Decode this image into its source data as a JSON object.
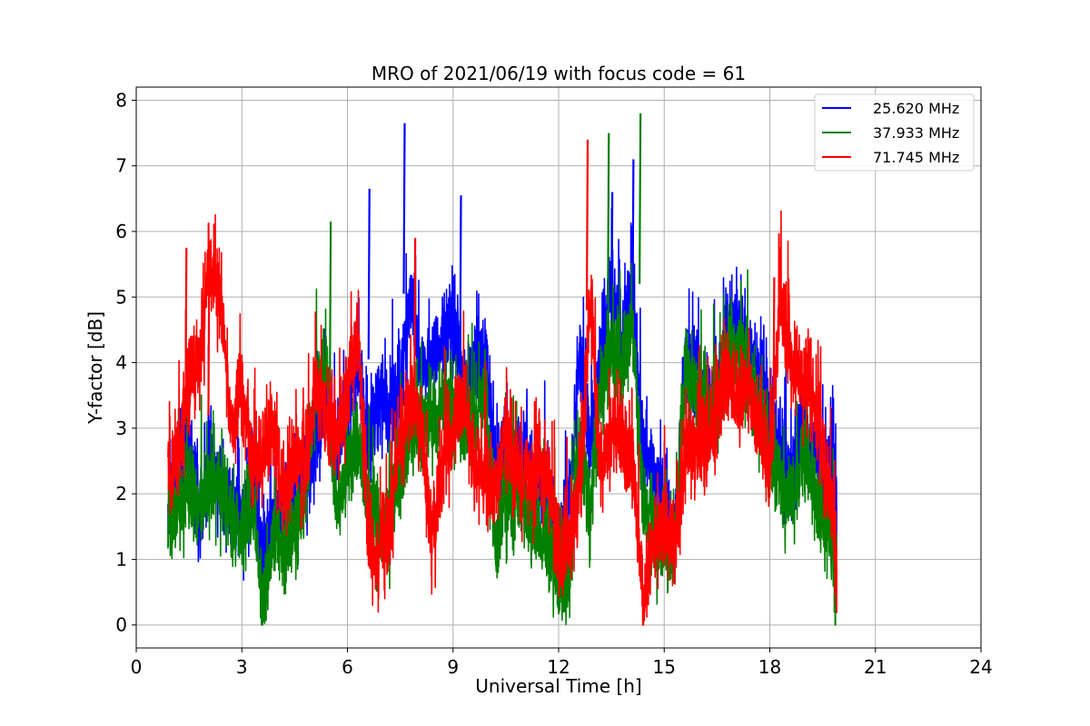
{
  "chart_data": {
    "type": "line",
    "title": "MRO of 2021/06/19 with focus code = 61",
    "xlabel": "Universal Time [h]",
    "ylabel": "Y-factor [dB]",
    "xlim": [
      0,
      24
    ],
    "ylim": [
      -0.35,
      8.2
    ],
    "xticks": [
      0,
      3,
      6,
      9,
      12,
      15,
      18,
      21,
      24
    ],
    "yticks": [
      0,
      1,
      2,
      3,
      4,
      5,
      6,
      7,
      8
    ],
    "grid": true,
    "legend_position": "top-right",
    "series": [
      {
        "name": "25.620 MHz",
        "color": "#0000ff",
        "x": [
          0.9,
          1.2,
          1.5,
          1.8,
          2.1,
          2.4,
          2.7,
          3.0,
          3.3,
          3.6,
          3.9,
          4.2,
          4.5,
          4.8,
          5.1,
          5.4,
          5.7,
          6.0,
          6.3,
          6.6,
          6.9,
          7.2,
          7.5,
          7.8,
          8.1,
          8.4,
          8.7,
          9.0,
          9.3,
          9.6,
          9.9,
          10.2,
          10.5,
          10.8,
          11.1,
          11.4,
          11.7,
          12.0,
          12.3,
          12.6,
          12.9,
          13.2,
          13.5,
          13.8,
          14.1,
          14.4,
          14.7,
          15.0,
          15.3,
          15.6,
          15.9,
          16.2,
          16.5,
          16.8,
          17.1,
          17.4,
          17.7,
          18.0,
          18.3,
          18.6,
          18.9,
          19.2,
          19.5,
          19.8,
          19.9
        ],
        "y": [
          1.6,
          2.4,
          2.7,
          1.6,
          2.6,
          2.2,
          1.8,
          1.6,
          2.2,
          1.0,
          1.8,
          1.4,
          2.0,
          2.2,
          2.8,
          3.4,
          2.6,
          3.2,
          4.0,
          2.6,
          3.6,
          3.2,
          3.6,
          5.0,
          3.8,
          4.0,
          4.4,
          4.6,
          3.6,
          4.0,
          4.2,
          2.4,
          2.6,
          2.4,
          2.6,
          2.0,
          1.8,
          1.2,
          1.8,
          4.2,
          2.6,
          4.0,
          5.0,
          4.4,
          5.0,
          2.6,
          2.2,
          1.8,
          1.4,
          4.0,
          3.8,
          3.4,
          3.6,
          4.4,
          4.6,
          4.0,
          3.6,
          3.2,
          2.6,
          2.2,
          3.0,
          2.8,
          2.4,
          2.6,
          1.8
        ],
        "annotations_peaks": [
          [
            7.6,
            7.65
          ],
          [
            14.1,
            7.1
          ],
          [
            13.5,
            6.6
          ],
          [
            9.2,
            6.55
          ],
          [
            6.6,
            6.65
          ]
        ]
      },
      {
        "name": "37.933 MHz",
        "color": "#008000",
        "x": [
          0.9,
          1.2,
          1.5,
          1.8,
          2.1,
          2.4,
          2.7,
          3.0,
          3.3,
          3.6,
          3.9,
          4.2,
          4.5,
          4.8,
          5.1,
          5.4,
          5.7,
          6.0,
          6.3,
          6.6,
          6.9,
          7.2,
          7.5,
          7.8,
          8.1,
          8.4,
          8.7,
          9.0,
          9.3,
          9.6,
          9.9,
          10.2,
          10.5,
          10.8,
          11.1,
          11.4,
          11.7,
          12.0,
          12.3,
          12.6,
          12.9,
          13.2,
          13.5,
          13.8,
          14.1,
          14.4,
          14.7,
          15.0,
          15.3,
          15.6,
          15.9,
          16.2,
          16.5,
          16.8,
          17.1,
          17.4,
          17.7,
          18.0,
          18.3,
          18.6,
          18.9,
          19.2,
          19.5,
          19.8,
          19.9
        ],
        "y": [
          1.4,
          1.8,
          2.0,
          1.8,
          2.2,
          2.0,
          1.6,
          1.4,
          1.8,
          0.2,
          1.4,
          1.2,
          1.6,
          1.8,
          3.6,
          4.0,
          1.6,
          2.4,
          2.8,
          1.8,
          1.4,
          1.6,
          2.4,
          3.0,
          3.0,
          3.2,
          3.4,
          3.4,
          3.0,
          3.2,
          3.6,
          1.2,
          1.8,
          2.0,
          1.6,
          1.4,
          1.2,
          0.6,
          0.8,
          2.8,
          1.8,
          3.6,
          4.2,
          4.0,
          4.6,
          1.8,
          1.4,
          1.2,
          1.2,
          3.8,
          3.6,
          3.2,
          3.4,
          4.0,
          4.2,
          3.8,
          3.2,
          2.8,
          2.2,
          1.8,
          2.6,
          2.2,
          1.6,
          1.2,
          0.4
        ],
        "annotations_peaks": [
          [
            14.3,
            7.8
          ],
          [
            13.4,
            7.5
          ],
          [
            5.5,
            6.15
          ]
        ]
      },
      {
        "name": "71.745 MHz",
        "color": "#ff0000",
        "x": [
          0.9,
          1.2,
          1.5,
          1.8,
          2.1,
          2.4,
          2.7,
          3.0,
          3.3,
          3.6,
          3.9,
          4.2,
          4.5,
          4.8,
          5.1,
          5.4,
          5.7,
          6.0,
          6.3,
          6.6,
          6.9,
          7.2,
          7.5,
          7.8,
          8.1,
          8.4,
          8.7,
          9.0,
          9.3,
          9.6,
          9.9,
          10.2,
          10.5,
          10.8,
          11.1,
          11.4,
          11.7,
          12.0,
          12.3,
          12.6,
          12.9,
          13.2,
          13.5,
          13.8,
          14.1,
          14.4,
          14.7,
          15.0,
          15.3,
          15.6,
          15.9,
          16.2,
          16.5,
          16.8,
          17.1,
          17.4,
          17.7,
          18.0,
          18.3,
          18.6,
          18.9,
          19.2,
          19.5,
          19.8,
          19.9
        ],
        "y": [
          2.4,
          2.6,
          3.8,
          4.0,
          5.6,
          4.8,
          3.0,
          3.6,
          2.4,
          2.6,
          2.8,
          2.0,
          2.6,
          2.4,
          3.6,
          3.2,
          2.8,
          3.6,
          4.6,
          1.2,
          1.0,
          1.6,
          2.8,
          3.4,
          3.0,
          1.2,
          2.4,
          3.0,
          3.4,
          2.4,
          2.2,
          2.0,
          2.8,
          2.4,
          2.2,
          2.4,
          2.2,
          1.0,
          1.4,
          2.0,
          5.0,
          2.2,
          3.0,
          2.8,
          2.6,
          0.4,
          1.4,
          1.6,
          1.2,
          2.8,
          2.6,
          2.8,
          3.0,
          3.8,
          3.4,
          3.6,
          3.0,
          2.4,
          5.0,
          4.0,
          3.8,
          3.6,
          2.6,
          1.6,
          0.9
        ],
        "annotations_peaks": [
          [
            12.8,
            7.4
          ],
          [
            2.05,
            5.8
          ],
          [
            1.4,
            5.75
          ],
          [
            7.9,
            5.9
          ],
          [
            18.1,
            5.3
          ]
        ]
      }
    ]
  }
}
